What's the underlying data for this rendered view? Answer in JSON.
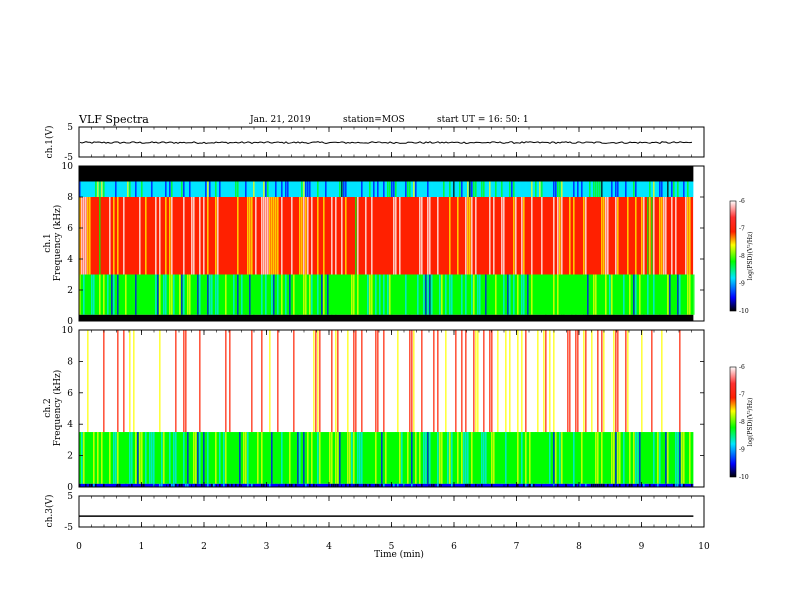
{
  "header": {
    "title": "VLF Spectra",
    "date": "Jan. 21, 2019",
    "station": "station=MOS",
    "start": "start UT =   16: 50: 1"
  },
  "colors": {
    "background": "#ffffff",
    "axes": "#000000",
    "colormap": [
      "#000000",
      "#0000ff",
      "#00e5ff",
      "#00ff00",
      "#ffff00",
      "#ff2000",
      "#ffffff"
    ]
  },
  "chart_data": [
    {
      "type": "line",
      "ylabel": "ch.1(V)",
      "ylim": [
        -5,
        5
      ],
      "yticks": [
        "5",
        "-5"
      ],
      "series": [
        {
          "values_description_constant": -0.2
        }
      ]
    },
    {
      "type": "heatmap",
      "ylabel": "ch.1",
      "ylabel2": "Frequency (kHz)",
      "ylim": [
        0,
        10
      ],
      "yticks": [
        "0",
        "2",
        "4",
        "6",
        "8",
        "10"
      ],
      "colorbar": {
        "label": "log(PSD)(V²/Hz)",
        "ticks": [
          "-6",
          "-7",
          "-8",
          "-9",
          "-10"
        ],
        "range": [
          -10,
          -6
        ]
      },
      "bands": [
        {
          "from_khz": 9.0,
          "to_khz": 10,
          "level": -10
        },
        {
          "from_khz": 8.0,
          "to_khz": 9.0,
          "level": -8.6
        },
        {
          "from_khz": 3.0,
          "to_khz": 8.0,
          "level": -6.6
        },
        {
          "from_khz": 0.4,
          "to_khz": 3.0,
          "level": -8.2
        },
        {
          "from_khz": 0,
          "to_khz": 0.4,
          "level": -10
        }
      ]
    },
    {
      "type": "heatmap",
      "ylabel": "ch.2",
      "ylabel2": "Frequency (kHz)",
      "ylim": [
        0,
        10
      ],
      "yticks": [
        "0",
        "2",
        "4",
        "6",
        "8",
        "10"
      ],
      "colorbar": {
        "label": "log(PSD)(V²/Hz)",
        "ticks": [
          "-6",
          "-7",
          "-8",
          "-9",
          "-10"
        ],
        "range": [
          -10,
          -6
        ]
      },
      "bands": [
        {
          "from_khz": 3.5,
          "to_khz": 10,
          "level": -6.2
        },
        {
          "from_khz": 0.2,
          "to_khz": 3.5,
          "level": -8.1
        },
        {
          "from_khz": 0,
          "to_khz": 0.2,
          "level": -9.6
        }
      ]
    },
    {
      "type": "line",
      "ylabel": "ch.3(V)",
      "ylim": [
        -5,
        5
      ],
      "yticks": [
        "5",
        "-5"
      ],
      "series": [
        {
          "values_description_constant": -1.5
        }
      ]
    }
  ],
  "xaxis": {
    "label": "Time (min)",
    "ticks": [
      "0",
      "1",
      "2",
      "3",
      "4",
      "5",
      "6",
      "7",
      "8",
      "9",
      "10"
    ],
    "xlim": [
      0,
      10
    ],
    "data_end": 9.83
  }
}
